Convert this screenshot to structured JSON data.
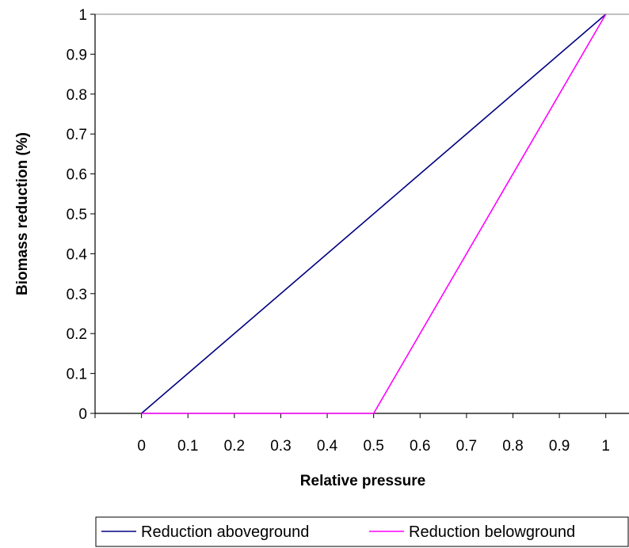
{
  "chart_data": {
    "type": "line",
    "xlabel": "Relative pressure",
    "ylabel": "Biomass reduction (%)",
    "xlim": [
      -0.1,
      1.05
    ],
    "ylim": [
      0,
      1
    ],
    "x_ticks": [
      "0",
      "0.1",
      "0.2",
      "0.3",
      "0.4",
      "0.5",
      "0.6",
      "0.7",
      "0.8",
      "0.9",
      "1"
    ],
    "y_ticks": [
      "0",
      "0.1",
      "0.2",
      "0.3",
      "0.4",
      "0.5",
      "0.6",
      "0.7",
      "0.8",
      "0.9",
      "1"
    ],
    "grid": false,
    "legend_position": "bottom",
    "series": [
      {
        "name": "Reduction aboveground",
        "color": "#000080",
        "points": [
          [
            0,
            0
          ],
          [
            1,
            1
          ]
        ]
      },
      {
        "name": "Reduction belowground",
        "color": "#ff00ff",
        "points": [
          [
            0,
            0
          ],
          [
            0.5,
            0
          ],
          [
            1,
            1
          ]
        ]
      }
    ]
  }
}
